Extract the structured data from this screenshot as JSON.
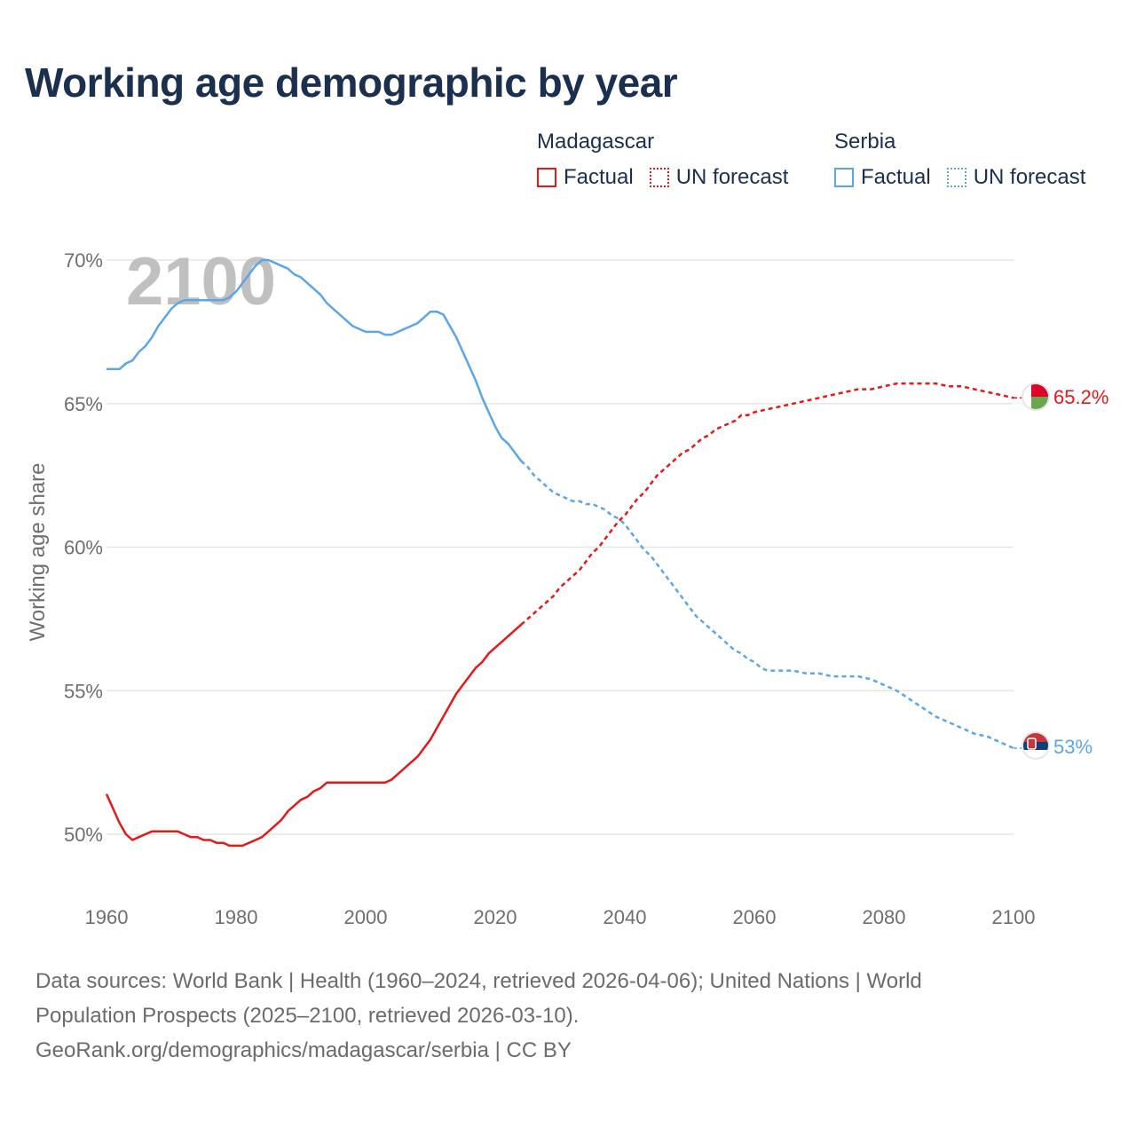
{
  "title": "Working age demographic by year",
  "legend": {
    "groups": [
      {
        "name": "Madagascar",
        "factual": "Factual",
        "forecast": "UN forecast",
        "color": "#e31a1c"
      },
      {
        "name": "Serbia",
        "factual": "Factual",
        "forecast": "UN forecast",
        "color": "#5ca6e6"
      }
    ]
  },
  "footer": {
    "line1": "Data sources: World Bank | Health (1960–2024, retrieved 2026-04-06); United Nations | World",
    "line2": "Population Prospects (2025–2100, retrieved 2026-03-10).",
    "line3": "GeoRank.org/demographics/madagascar/serbia | CC BY"
  },
  "chart_data": {
    "type": "line",
    "title": "Working age demographic by year",
    "xlabel": "",
    "ylabel": "Working age share",
    "year_watermark": "2100",
    "xlim": [
      1960,
      2100
    ],
    "ylim": [
      48.5,
      70.5
    ],
    "x_ticks": [
      1960,
      1980,
      2000,
      2020,
      2040,
      2060,
      2080,
      2100
    ],
    "x_tick_labels": [
      "1960",
      "1980",
      "2000",
      "2020",
      "2040",
      "2060",
      "2080",
      "2100"
    ],
    "y_ticks": [
      50,
      55,
      60,
      65,
      70
    ],
    "y_tick_labels": [
      "50%",
      "55%",
      "60%",
      "65%",
      "70%"
    ],
    "factual_end": 2024,
    "series": [
      {
        "name": "Madagascar",
        "color": "#e31a1c",
        "end_label": "65.2%",
        "points": [
          [
            1960,
            51.4
          ],
          [
            1961,
            50.9
          ],
          [
            1962,
            50.4
          ],
          [
            1963,
            50.0
          ],
          [
            1964,
            49.8
          ],
          [
            1965,
            49.9
          ],
          [
            1966,
            50.0
          ],
          [
            1967,
            50.1
          ],
          [
            1968,
            50.1
          ],
          [
            1969,
            50.1
          ],
          [
            1970,
            50.1
          ],
          [
            1971,
            50.1
          ],
          [
            1972,
            50.0
          ],
          [
            1973,
            49.9
          ],
          [
            1974,
            49.9
          ],
          [
            1975,
            49.8
          ],
          [
            1976,
            49.8
          ],
          [
            1977,
            49.7
          ],
          [
            1978,
            49.7
          ],
          [
            1979,
            49.6
          ],
          [
            1980,
            49.6
          ],
          [
            1981,
            49.6
          ],
          [
            1982,
            49.7
          ],
          [
            1983,
            49.8
          ],
          [
            1984,
            49.9
          ],
          [
            1985,
            50.1
          ],
          [
            1986,
            50.3
          ],
          [
            1987,
            50.5
          ],
          [
            1988,
            50.8
          ],
          [
            1989,
            51.0
          ],
          [
            1990,
            51.2
          ],
          [
            1991,
            51.3
          ],
          [
            1992,
            51.5
          ],
          [
            1993,
            51.6
          ],
          [
            1994,
            51.8
          ],
          [
            1995,
            51.8
          ],
          [
            1996,
            51.8
          ],
          [
            1997,
            51.8
          ],
          [
            1998,
            51.8
          ],
          [
            1999,
            51.8
          ],
          [
            2000,
            51.8
          ],
          [
            2001,
            51.8
          ],
          [
            2002,
            51.8
          ],
          [
            2003,
            51.8
          ],
          [
            2004,
            51.9
          ],
          [
            2005,
            52.1
          ],
          [
            2006,
            52.3
          ],
          [
            2007,
            52.5
          ],
          [
            2008,
            52.7
          ],
          [
            2009,
            53.0
          ],
          [
            2010,
            53.3
          ],
          [
            2011,
            53.7
          ],
          [
            2012,
            54.1
          ],
          [
            2013,
            54.5
          ],
          [
            2014,
            54.9
          ],
          [
            2015,
            55.2
          ],
          [
            2016,
            55.5
          ],
          [
            2017,
            55.8
          ],
          [
            2018,
            56.0
          ],
          [
            2019,
            56.3
          ],
          [
            2020,
            56.5
          ],
          [
            2021,
            56.7
          ],
          [
            2022,
            56.9
          ],
          [
            2023,
            57.1
          ],
          [
            2024,
            57.3
          ],
          [
            2025,
            57.5
          ],
          [
            2026,
            57.7
          ],
          [
            2027,
            57.9
          ],
          [
            2028,
            58.1
          ],
          [
            2029,
            58.3
          ],
          [
            2030,
            58.6
          ],
          [
            2031,
            58.8
          ],
          [
            2032,
            59.0
          ],
          [
            2033,
            59.2
          ],
          [
            2034,
            59.5
          ],
          [
            2035,
            59.8
          ],
          [
            2036,
            60.0
          ],
          [
            2037,
            60.3
          ],
          [
            2038,
            60.6
          ],
          [
            2039,
            60.9
          ],
          [
            2040,
            61.1
          ],
          [
            2041,
            61.4
          ],
          [
            2042,
            61.7
          ],
          [
            2043,
            61.9
          ],
          [
            2044,
            62.2
          ],
          [
            2045,
            62.5
          ],
          [
            2046,
            62.7
          ],
          [
            2047,
            62.9
          ],
          [
            2048,
            63.1
          ],
          [
            2049,
            63.3
          ],
          [
            2050,
            63.4
          ],
          [
            2051,
            63.6
          ],
          [
            2052,
            63.8
          ],
          [
            2053,
            63.9
          ],
          [
            2054,
            64.1
          ],
          [
            2055,
            64.2
          ],
          [
            2056,
            64.3
          ],
          [
            2057,
            64.4
          ],
          [
            2058,
            64.6
          ],
          [
            2059,
            64.6
          ],
          [
            2060,
            64.7
          ],
          [
            2062,
            64.8
          ],
          [
            2064,
            64.9
          ],
          [
            2066,
            65.0
          ],
          [
            2068,
            65.1
          ],
          [
            2070,
            65.2
          ],
          [
            2072,
            65.3
          ],
          [
            2074,
            65.4
          ],
          [
            2076,
            65.5
          ],
          [
            2078,
            65.5
          ],
          [
            2080,
            65.6
          ],
          [
            2082,
            65.7
          ],
          [
            2084,
            65.7
          ],
          [
            2086,
            65.7
          ],
          [
            2088,
            65.7
          ],
          [
            2090,
            65.6
          ],
          [
            2092,
            65.6
          ],
          [
            2094,
            65.5
          ],
          [
            2096,
            65.4
          ],
          [
            2098,
            65.3
          ],
          [
            2100,
            65.2
          ]
        ]
      },
      {
        "name": "Serbia",
        "color": "#5ca6e6",
        "end_label": "53%",
        "points": [
          [
            1960,
            66.2
          ],
          [
            1961,
            66.2
          ],
          [
            1962,
            66.2
          ],
          [
            1963,
            66.4
          ],
          [
            1964,
            66.5
          ],
          [
            1965,
            66.8
          ],
          [
            1966,
            67.0
          ],
          [
            1967,
            67.3
          ],
          [
            1968,
            67.7
          ],
          [
            1969,
            68.0
          ],
          [
            1970,
            68.3
          ],
          [
            1971,
            68.5
          ],
          [
            1972,
            68.6
          ],
          [
            1973,
            68.6
          ],
          [
            1974,
            68.6
          ],
          [
            1975,
            68.6
          ],
          [
            1976,
            68.6
          ],
          [
            1977,
            68.6
          ],
          [
            1978,
            68.6
          ],
          [
            1979,
            68.7
          ],
          [
            1980,
            68.9
          ],
          [
            1981,
            69.2
          ],
          [
            1982,
            69.5
          ],
          [
            1983,
            69.8
          ],
          [
            1984,
            70.0
          ],
          [
            1985,
            70.0
          ],
          [
            1986,
            69.9
          ],
          [
            1987,
            69.8
          ],
          [
            1988,
            69.7
          ],
          [
            1989,
            69.5
          ],
          [
            1990,
            69.4
          ],
          [
            1991,
            69.2
          ],
          [
            1992,
            69.0
          ],
          [
            1993,
            68.8
          ],
          [
            1994,
            68.5
          ],
          [
            1995,
            68.3
          ],
          [
            1996,
            68.1
          ],
          [
            1997,
            67.9
          ],
          [
            1998,
            67.7
          ],
          [
            1999,
            67.6
          ],
          [
            2000,
            67.5
          ],
          [
            2001,
            67.5
          ],
          [
            2002,
            67.5
          ],
          [
            2003,
            67.4
          ],
          [
            2004,
            67.4
          ],
          [
            2005,
            67.5
          ],
          [
            2006,
            67.6
          ],
          [
            2007,
            67.7
          ],
          [
            2008,
            67.8
          ],
          [
            2009,
            68.0
          ],
          [
            2010,
            68.2
          ],
          [
            2011,
            68.2
          ],
          [
            2012,
            68.1
          ],
          [
            2013,
            67.7
          ],
          [
            2014,
            67.3
          ],
          [
            2015,
            66.8
          ],
          [
            2016,
            66.3
          ],
          [
            2017,
            65.8
          ],
          [
            2018,
            65.2
          ],
          [
            2019,
            64.7
          ],
          [
            2020,
            64.2
          ],
          [
            2021,
            63.8
          ],
          [
            2022,
            63.6
          ],
          [
            2023,
            63.3
          ],
          [
            2024,
            63.0
          ],
          [
            2025,
            62.8
          ],
          [
            2026,
            62.5
          ],
          [
            2027,
            62.3
          ],
          [
            2028,
            62.1
          ],
          [
            2029,
            61.9
          ],
          [
            2030,
            61.8
          ],
          [
            2031,
            61.7
          ],
          [
            2032,
            61.6
          ],
          [
            2033,
            61.6
          ],
          [
            2034,
            61.5
          ],
          [
            2035,
            61.5
          ],
          [
            2036,
            61.4
          ],
          [
            2037,
            61.3
          ],
          [
            2038,
            61.1
          ],
          [
            2039,
            61.0
          ],
          [
            2040,
            60.8
          ],
          [
            2041,
            60.5
          ],
          [
            2042,
            60.2
          ],
          [
            2043,
            59.9
          ],
          [
            2044,
            59.7
          ],
          [
            2045,
            59.4
          ],
          [
            2046,
            59.1
          ],
          [
            2047,
            58.8
          ],
          [
            2048,
            58.5
          ],
          [
            2049,
            58.2
          ],
          [
            2050,
            57.9
          ],
          [
            2051,
            57.6
          ],
          [
            2052,
            57.4
          ],
          [
            2053,
            57.2
          ],
          [
            2054,
            57.0
          ],
          [
            2055,
            56.8
          ],
          [
            2056,
            56.6
          ],
          [
            2057,
            56.4
          ],
          [
            2058,
            56.3
          ],
          [
            2059,
            56.1
          ],
          [
            2060,
            56.0
          ],
          [
            2061,
            55.8
          ],
          [
            2062,
            55.7
          ],
          [
            2064,
            55.7
          ],
          [
            2066,
            55.7
          ],
          [
            2068,
            55.6
          ],
          [
            2070,
            55.6
          ],
          [
            2072,
            55.5
          ],
          [
            2074,
            55.5
          ],
          [
            2076,
            55.5
          ],
          [
            2078,
            55.4
          ],
          [
            2080,
            55.2
          ],
          [
            2082,
            55.0
          ],
          [
            2084,
            54.7
          ],
          [
            2086,
            54.4
          ],
          [
            2088,
            54.1
          ],
          [
            2090,
            53.9
          ],
          [
            2092,
            53.7
          ],
          [
            2094,
            53.5
          ],
          [
            2096,
            53.4
          ],
          [
            2098,
            53.2
          ],
          [
            2100,
            53.0
          ]
        ]
      }
    ]
  }
}
